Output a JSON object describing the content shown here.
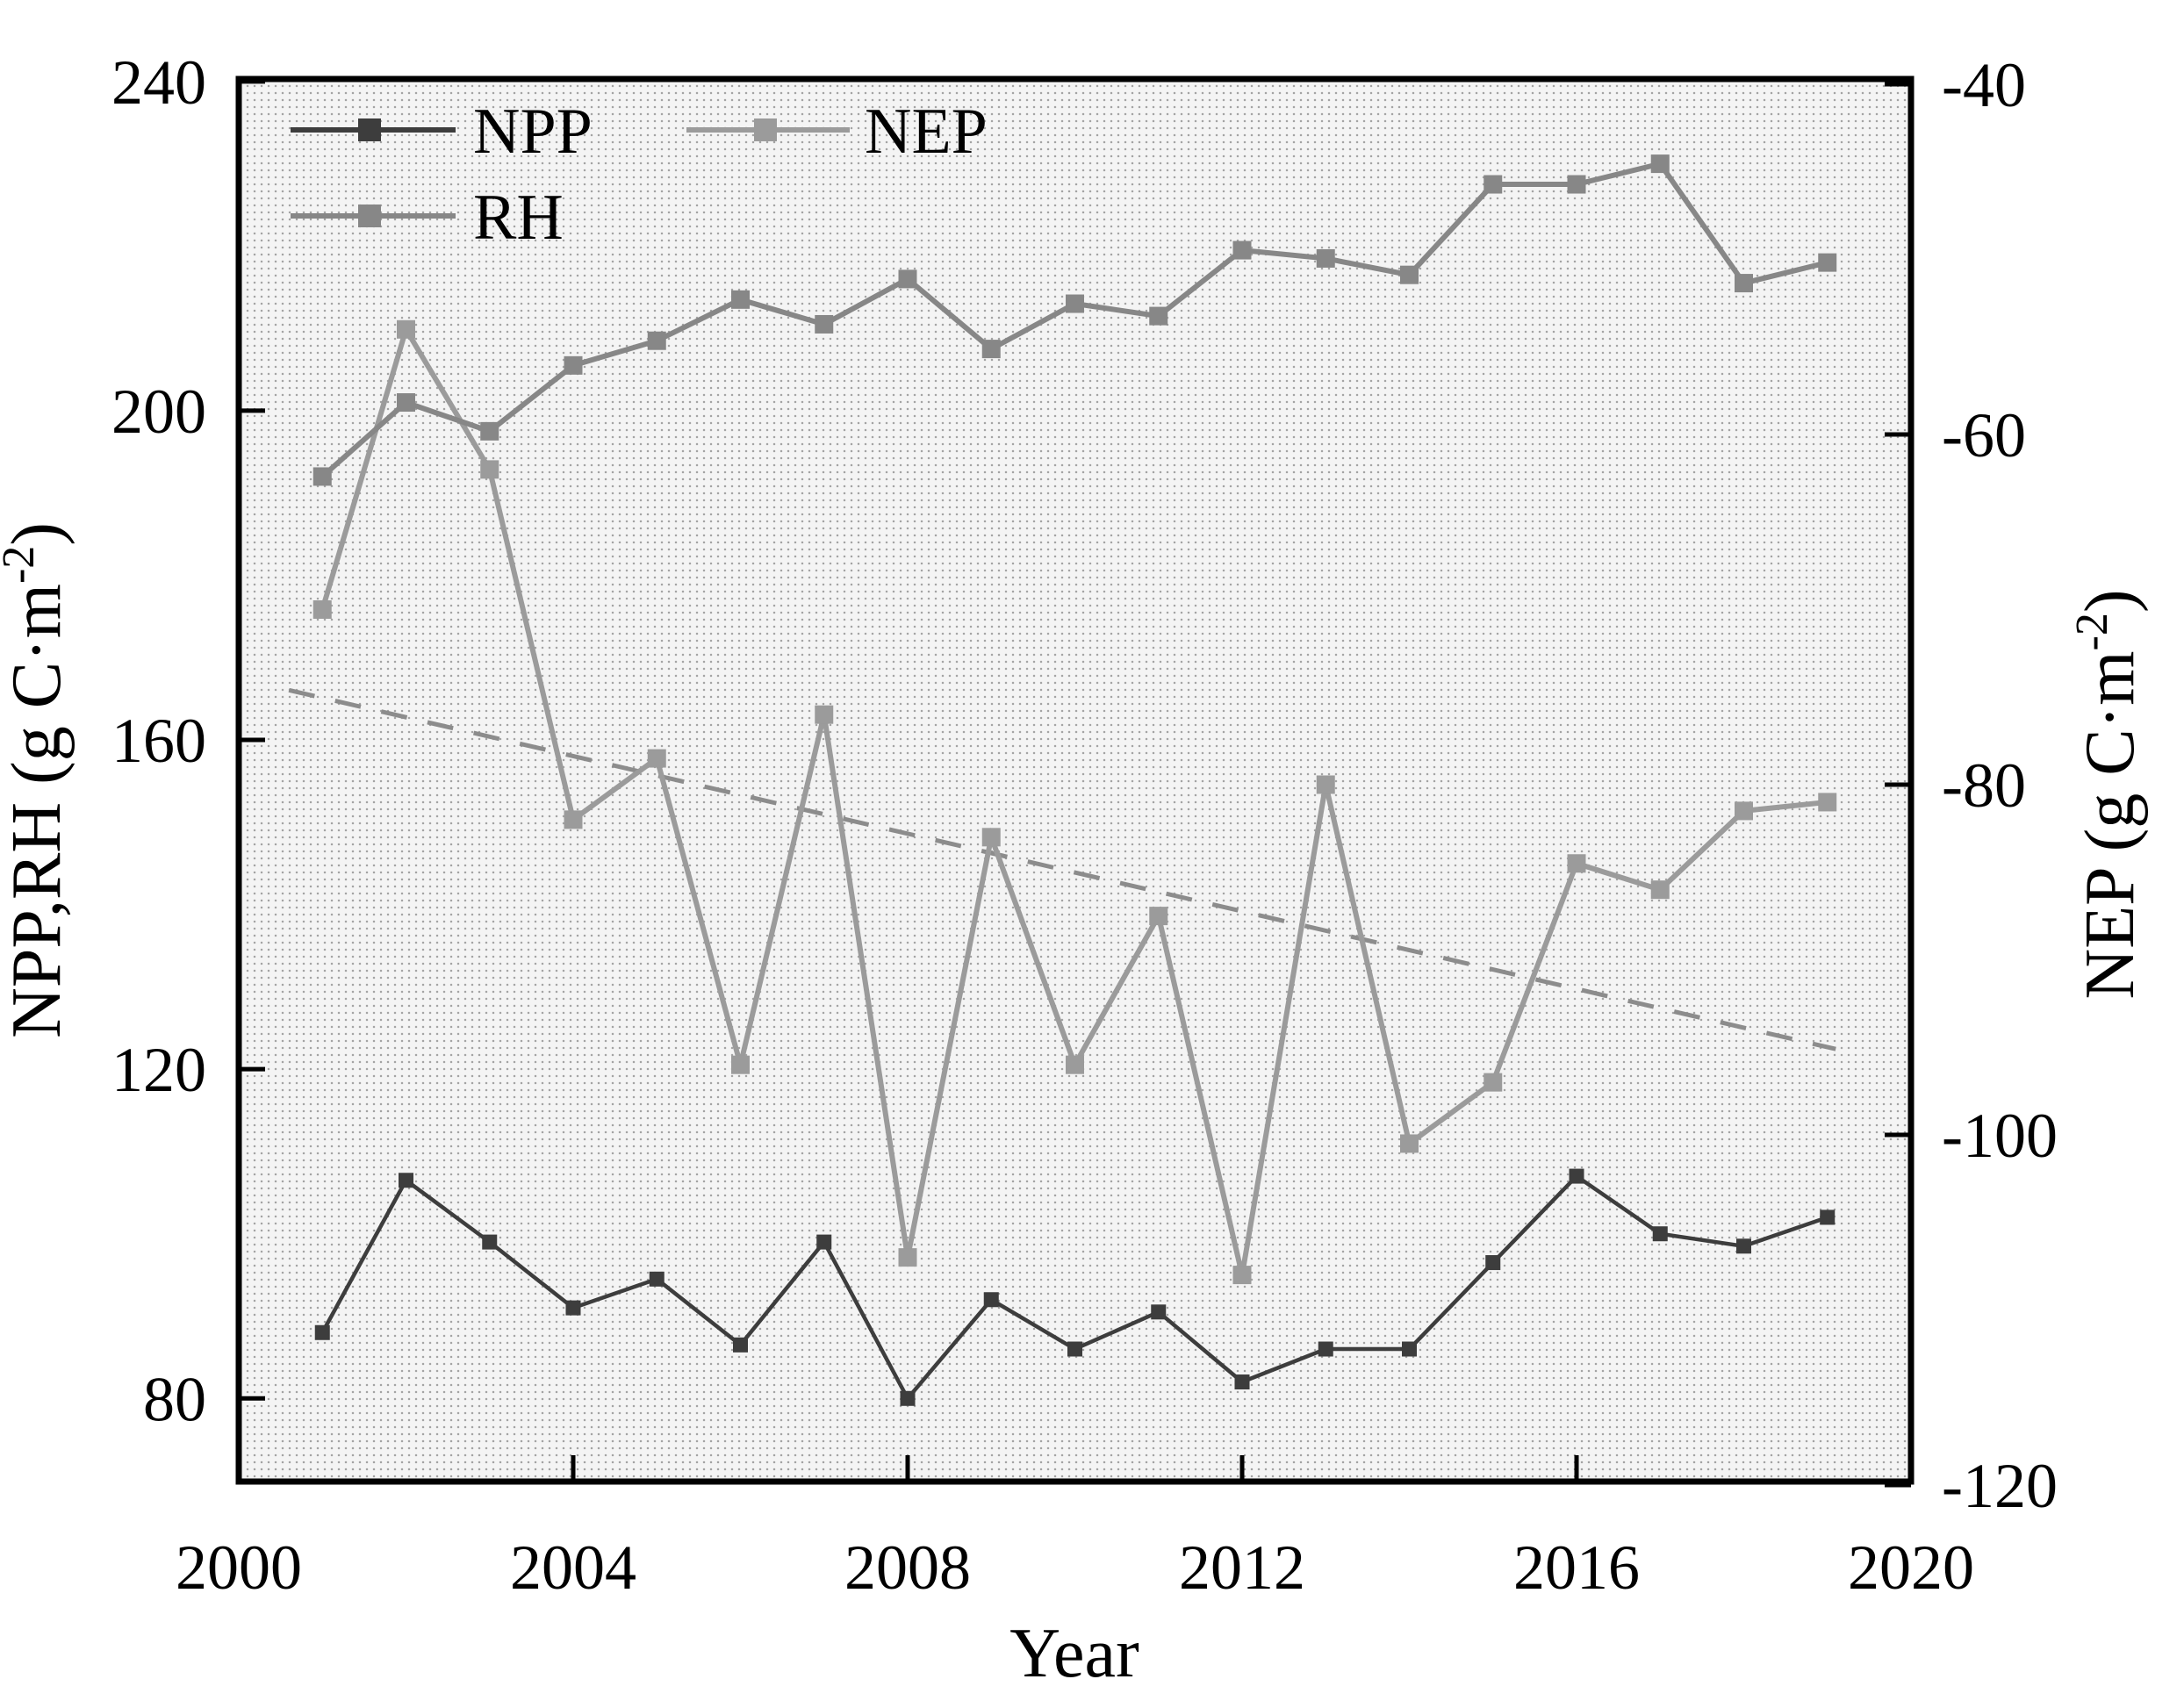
{
  "chart_data": {
    "type": "line",
    "title": "",
    "xlabel": "Year",
    "ylabel_left": {
      "text": "NPP,RH (g C·m⁻²)",
      "main": "NPP,RH (g C·m",
      "sup": "-2",
      "end": ")"
    },
    "ylabel_right": {
      "text": "NEP (g C·m⁻²)",
      "main": "NEP (g C·m",
      "sup": "-2",
      "end": ")"
    },
    "xlim": [
      2000,
      2020
    ],
    "ylim_left": [
      69.9,
      240.3
    ],
    "ylim_right": [
      -119.8,
      -39.7
    ],
    "x_ticks": [
      2000,
      2004,
      2008,
      2012,
      2016,
      2020
    ],
    "left_ticks": [
      240,
      200,
      160,
      120,
      80
    ],
    "right_ticks": [
      -40,
      -60,
      -80,
      -100,
      -120
    ],
    "grid": false,
    "legend_position": "top-left-inside",
    "years": [
      2001,
      2002,
      2003,
      2004,
      2005,
      2006,
      2007,
      2008,
      2009,
      2010,
      2011,
      2012,
      2013,
      2014,
      2015,
      2016,
      2017,
      2018,
      2019
    ],
    "series": [
      {
        "name": "NPP",
        "axis": "left",
        "color": "#3d3d3d",
        "marker": "square",
        "values": [
          88,
          106.5,
          99,
          91,
          94.5,
          86.5,
          99,
          80,
          92,
          86,
          90.5,
          82,
          86,
          86,
          96.5,
          107,
          100,
          98.5,
          102
        ]
      },
      {
        "name": "RH",
        "axis": "left",
        "color": "#878787",
        "marker": "square",
        "values": [
          192,
          201,
          197.5,
          205.5,
          208.5,
          213.5,
          210.5,
          216,
          207.5,
          213,
          211.5,
          219.5,
          218.5,
          216.5,
          227.5,
          227.5,
          230,
          215.5,
          218
        ]
      },
      {
        "name": "NEP",
        "axis": "right",
        "color": "#9b9b9b",
        "marker": "square",
        "values": [
          -70,
          -54,
          -62,
          -82,
          -78.5,
          -96,
          -76,
          -107,
          -83,
          -96,
          -87.5,
          -108,
          -80,
          -100.5,
          -97,
          -84.5,
          -86,
          -81.5,
          -81
        ]
      }
    ],
    "trendline": {
      "for_series": "NEP",
      "axis": "right",
      "style": "dashed",
      "color": "#8c8c8c",
      "start": {
        "x": 2000.6,
        "y": -74.6
      },
      "end": {
        "x": 2019.1,
        "y": -95.1
      }
    },
    "legend": [
      {
        "label": "NPP"
      },
      {
        "label": "NEP"
      },
      {
        "label": "RH"
      }
    ],
    "colors": {
      "frame": "#000000",
      "plot_dot_pattern": "#8f8f8f",
      "plot_background": "#f4f4f4"
    }
  }
}
